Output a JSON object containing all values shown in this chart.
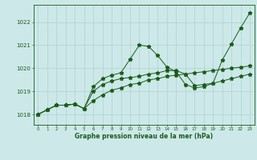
{
  "title": "Graphe pression niveau de la mer (hPa)",
  "bg_color": "#cce8e8",
  "line_color": "#1a5c1a",
  "x_ticks": [
    0,
    1,
    2,
    3,
    4,
    5,
    6,
    7,
    8,
    9,
    10,
    11,
    12,
    13,
    14,
    15,
    16,
    17,
    18,
    19,
    20,
    21,
    22,
    23
  ],
  "ylim": [
    1017.55,
    1022.75
  ],
  "y_ticks": [
    1018,
    1019,
    1020,
    1021,
    1022
  ],
  "series1_y": [
    1018.0,
    1018.2,
    1018.4,
    1018.4,
    1018.45,
    1018.25,
    1018.6,
    1018.85,
    1019.05,
    1019.15,
    1019.3,
    1019.35,
    1019.5,
    1019.55,
    1019.65,
    1019.7,
    1019.75,
    1019.8,
    1019.85,
    1019.9,
    1019.95,
    1020.0,
    1020.05,
    1020.1
  ],
  "series2_y": [
    1018.0,
    1018.2,
    1018.4,
    1018.4,
    1018.45,
    1018.25,
    1019.2,
    1019.55,
    1019.7,
    1019.8,
    1020.4,
    1021.0,
    1020.95,
    1020.55,
    1020.05,
    1019.85,
    1019.3,
    1019.15,
    1019.2,
    1019.35,
    1020.35,
    1021.05,
    1021.75,
    1022.4
  ],
  "series3_y": [
    1018.0,
    1018.2,
    1018.4,
    1018.4,
    1018.45,
    1018.25,
    1019.0,
    1019.3,
    1019.45,
    1019.55,
    1019.6,
    1019.65,
    1019.75,
    1019.8,
    1019.9,
    1019.9,
    1019.75,
    1019.25,
    1019.3,
    1019.35,
    1019.45,
    1019.55,
    1019.65,
    1019.75
  ]
}
